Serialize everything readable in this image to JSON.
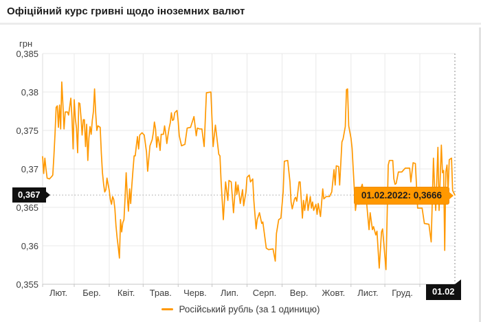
{
  "header": {
    "title": "Офіційний курс гривні щодо іноземних валют"
  },
  "chart_data": {
    "type": "line",
    "title": "Офіційний курс гривні щодо іноземних валют",
    "unit_label": "грн",
    "ylabel": "грн",
    "xlabel": "",
    "grid": true,
    "legend_position": "bottom-center",
    "y_axis": {
      "min": 0.355,
      "max": 0.385,
      "tick_labels": [
        "0,385",
        "0,38",
        "0,375",
        "0,37",
        "0,365",
        "0,36",
        "0,355"
      ],
      "tick_values": [
        0.385,
        0.38,
        0.375,
        0.37,
        0.365,
        0.36,
        0.355
      ]
    },
    "x_axis": {
      "total_days": 365,
      "tick_labels": [
        "Лют.",
        "Бер.",
        "Квіт.",
        "Трав.",
        "Черв.",
        "Лип.",
        "Серп.",
        "Вер.",
        "Жовт.",
        "Лист.",
        "Груд."
      ],
      "tick_center_days": [
        14,
        43.5,
        74,
        104.5,
        135,
        165.5,
        196.5,
        227,
        257.5,
        288,
        318.5
      ],
      "month_boundary_days": [
        0,
        28,
        59,
        89,
        120,
        150,
        181,
        212,
        242,
        273,
        303,
        334,
        365
      ]
    },
    "series": [
      {
        "name": "Російський рубль (за 1 одиницю)",
        "color": "#ff9800",
        "points": [
          [
            0,
            0.3716
          ],
          [
            1,
            0.3694
          ],
          [
            2,
            0.3714
          ],
          [
            3,
            0.37
          ],
          [
            4,
            0.3688
          ],
          [
            6,
            0.3687
          ],
          [
            8,
            0.369
          ],
          [
            9,
            0.3692
          ],
          [
            10,
            0.3716
          ],
          [
            11,
            0.3746
          ],
          [
            12,
            0.378
          ],
          [
            13,
            0.3782
          ],
          [
            14,
            0.3754
          ],
          [
            15,
            0.3783
          ],
          [
            16,
            0.3752
          ],
          [
            17,
            0.3813
          ],
          [
            18,
            0.3783
          ],
          [
            19,
            0.3752
          ],
          [
            20,
            0.3774
          ],
          [
            22,
            0.3774
          ],
          [
            23,
            0.377
          ],
          [
            25,
            0.3792
          ],
          [
            26,
            0.3767
          ],
          [
            27,
            0.3726
          ],
          [
            28,
            0.379
          ],
          [
            29,
            0.3765
          ],
          [
            30,
            0.3753
          ],
          [
            31,
            0.3721
          ],
          [
            32,
            0.3786
          ],
          [
            33,
            0.3785
          ],
          [
            34,
            0.3767
          ],
          [
            35,
            0.3744
          ],
          [
            36,
            0.3764
          ],
          [
            37,
            0.3764
          ],
          [
            38,
            0.3729
          ],
          [
            39,
            0.3758
          ],
          [
            40,
            0.3711
          ],
          [
            41,
            0.374
          ],
          [
            42,
            0.3755
          ],
          [
            43,
            0.3745
          ],
          [
            44,
            0.3763
          ],
          [
            45,
            0.3775
          ],
          [
            46,
            0.3804
          ],
          [
            47,
            0.3772
          ],
          [
            48,
            0.375
          ],
          [
            49,
            0.3756
          ],
          [
            51,
            0.3754
          ],
          [
            52,
            0.372
          ],
          [
            53,
            0.3695
          ],
          [
            54,
            0.368
          ],
          [
            55,
            0.367
          ],
          [
            56,
            0.3673
          ],
          [
            57,
            0.3688
          ],
          [
            58,
            0.368
          ],
          [
            59,
            0.3672
          ],
          [
            60,
            0.366
          ],
          [
            61,
            0.3654
          ],
          [
            62,
            0.3664
          ],
          [
            63,
            0.366
          ],
          [
            64,
            0.3648
          ],
          [
            65,
            0.3626
          ],
          [
            66,
            0.361
          ],
          [
            67,
            0.3598
          ],
          [
            68,
            0.3584
          ],
          [
            69,
            0.3634
          ],
          [
            70,
            0.3618
          ],
          [
            71,
            0.363
          ],
          [
            72,
            0.3634
          ],
          [
            73,
            0.3662
          ],
          [
            74,
            0.3695
          ],
          [
            75,
            0.3664
          ],
          [
            76,
            0.3645
          ],
          [
            77,
            0.3674
          ],
          [
            78,
            0.3655
          ],
          [
            79,
            0.3679
          ],
          [
            80,
            0.3698
          ],
          [
            81,
            0.3717
          ],
          [
            82,
            0.3717
          ],
          [
            83,
            0.373
          ],
          [
            84,
            0.3742
          ],
          [
            85,
            0.3726
          ],
          [
            86,
            0.3744
          ],
          [
            88,
            0.3747
          ],
          [
            90,
            0.3744
          ],
          [
            92,
            0.3722
          ],
          [
            93,
            0.3697
          ],
          [
            94,
            0.3713
          ],
          [
            95,
            0.373
          ],
          [
            97,
            0.3738
          ],
          [
            98,
            0.3747
          ],
          [
            99,
            0.3761
          ],
          [
            100,
            0.3752
          ],
          [
            101,
            0.3728
          ],
          [
            102,
            0.3742
          ],
          [
            103,
            0.3736
          ],
          [
            104,
            0.3724
          ],
          [
            105,
            0.3745
          ],
          [
            107,
            0.3745
          ],
          [
            108,
            0.3756
          ],
          [
            109,
            0.3746
          ],
          [
            110,
            0.3733
          ],
          [
            111,
            0.3744
          ],
          [
            112,
            0.3753
          ],
          [
            113,
            0.376
          ],
          [
            114,
            0.3773
          ],
          [
            115,
            0.3763
          ],
          [
            116,
            0.3764
          ],
          [
            117,
            0.3773
          ],
          [
            119,
            0.3776
          ],
          [
            120,
            0.3762
          ],
          [
            121,
            0.3743
          ],
          [
            123,
            0.373
          ],
          [
            126,
            0.3732
          ],
          [
            128,
            0.3753
          ],
          [
            131,
            0.3754
          ],
          [
            134,
            0.3768
          ],
          [
            136,
            0.3743
          ],
          [
            137,
            0.3753
          ],
          [
            139,
            0.3752
          ],
          [
            141,
            0.3752
          ],
          [
            143,
            0.3729
          ],
          [
            145,
            0.3799
          ],
          [
            149,
            0.38
          ],
          [
            151,
            0.3729
          ],
          [
            153,
            0.3757
          ],
          [
            156,
            0.3719
          ],
          [
            157,
            0.3717
          ],
          [
            158,
            0.3685
          ],
          [
            160,
            0.3634
          ],
          [
            162,
            0.3683
          ],
          [
            164,
            0.3659
          ],
          [
            165,
            0.3685
          ],
          [
            167,
            0.3683
          ],
          [
            169,
            0.3643
          ],
          [
            171,
            0.3683
          ],
          [
            172,
            0.3667
          ],
          [
            173,
            0.3679
          ],
          [
            175,
            0.3655
          ],
          [
            177,
            0.3673
          ],
          [
            178,
            0.3652
          ],
          [
            180,
            0.367
          ],
          [
            181,
            0.3689
          ],
          [
            183,
            0.3692
          ],
          [
            184,
            0.3683
          ],
          [
            186,
            0.3687
          ],
          [
            187,
            0.3659
          ],
          [
            189,
            0.3622
          ],
          [
            190,
            0.3634
          ],
          [
            192,
            0.3643
          ],
          [
            194,
            0.3629
          ],
          [
            195,
            0.3631
          ],
          [
            198,
            0.3597
          ],
          [
            200,
            0.3595
          ],
          [
            204,
            0.3596
          ],
          [
            206,
            0.358
          ],
          [
            207,
            0.3616
          ],
          [
            209,
            0.3634
          ],
          [
            211,
            0.3636
          ],
          [
            213,
            0.367
          ],
          [
            214,
            0.371
          ],
          [
            217,
            0.3711
          ],
          [
            219,
            0.3683
          ],
          [
            220,
            0.3657
          ],
          [
            221,
            0.3648
          ],
          [
            223,
            0.3661
          ],
          [
            224,
            0.3663
          ],
          [
            225,
            0.3658
          ],
          [
            227,
            0.3683
          ],
          [
            228,
            0.3683
          ],
          [
            230,
            0.3636
          ],
          [
            231,
            0.3659
          ],
          [
            232,
            0.3646
          ],
          [
            234,
            0.3667
          ],
          [
            235,
            0.3646
          ],
          [
            237,
            0.3664
          ],
          [
            238,
            0.3649
          ],
          [
            239,
            0.3657
          ],
          [
            240,
            0.3646
          ],
          [
            242,
            0.3654
          ],
          [
            243,
            0.3641
          ],
          [
            244,
            0.3655
          ],
          [
            246,
            0.3638
          ],
          [
            248,
            0.3674
          ],
          [
            249,
            0.3661
          ],
          [
            251,
            0.3664
          ],
          [
            254,
            0.3664
          ],
          [
            256,
            0.367
          ],
          [
            258,
            0.3699
          ],
          [
            259,
            0.3679
          ],
          [
            260,
            0.3704
          ],
          [
            262,
            0.3703
          ],
          [
            263,
            0.3679
          ],
          [
            265,
            0.3735
          ],
          [
            266,
            0.3739
          ],
          [
            268,
            0.3755
          ],
          [
            269,
            0.3803
          ],
          [
            270,
            0.3804
          ],
          [
            271,
            0.3756
          ],
          [
            273,
            0.374
          ],
          [
            274,
            0.3727
          ],
          [
            277,
            0.3646
          ],
          [
            279,
            0.367
          ],
          [
            280,
            0.3654
          ],
          [
            282,
            0.3676
          ],
          [
            283,
            0.368
          ],
          [
            284,
            0.367
          ],
          [
            286,
            0.3671
          ],
          [
            288,
            0.3637
          ],
          [
            289,
            0.3621
          ],
          [
            290,
            0.3643
          ],
          [
            292,
            0.3621
          ],
          [
            293,
            0.3625
          ],
          [
            295,
            0.3614
          ],
          [
            296,
            0.3619
          ],
          [
            298,
            0.3571
          ],
          [
            300,
            0.3618
          ],
          [
            301,
            0.3622
          ],
          [
            304,
            0.3569
          ],
          [
            306,
            0.3705
          ],
          [
            307,
            0.3711
          ],
          [
            310,
            0.3711
          ],
          [
            311,
            0.3687
          ],
          [
            312,
            0.368
          ],
          [
            313,
            0.3681
          ],
          [
            315,
            0.3696
          ],
          [
            318,
            0.3696
          ],
          [
            321,
            0.3701
          ],
          [
            325,
            0.3701
          ],
          [
            326,
            0.3683
          ],
          [
            328,
            0.3708
          ],
          [
            330,
            0.3707
          ],
          [
            332,
            0.3649
          ],
          [
            336,
            0.3649
          ],
          [
            338,
            0.3629
          ],
          [
            342,
            0.3628
          ],
          [
            344,
            0.3605
          ],
          [
            346,
            0.3714
          ],
          [
            347,
            0.3677
          ],
          [
            348,
            0.3646
          ],
          [
            350,
            0.3728
          ],
          [
            351,
            0.3646
          ],
          [
            353,
            0.3731
          ],
          [
            354,
            0.3695
          ],
          [
            355,
            0.3698
          ],
          [
            356,
            0.3594
          ],
          [
            357,
            0.3696
          ],
          [
            358,
            0.3705
          ],
          [
            359,
            0.3672
          ],
          [
            360,
            0.3712
          ],
          [
            362,
            0.3714
          ],
          [
            363,
            0.3672
          ],
          [
            365,
            0.3666
          ]
        ]
      }
    ],
    "annotations": {
      "current_value": 0.3666,
      "current_value_label": "0,367",
      "current_date_label": "01.02",
      "tooltip_text": "01.02.2022: 0,3666"
    },
    "legend": {
      "label": "Російський рубль (за 1 одиницю)"
    }
  },
  "colors": {
    "line": "#ff9800",
    "tooltip_bg": "#ff9800",
    "label_bg": "#101010",
    "grid": "#e8e8e8",
    "axis": "#c4c4c4",
    "dotted_guide": "#b3b3b3",
    "dashed_guide": "#9e9e9e"
  }
}
